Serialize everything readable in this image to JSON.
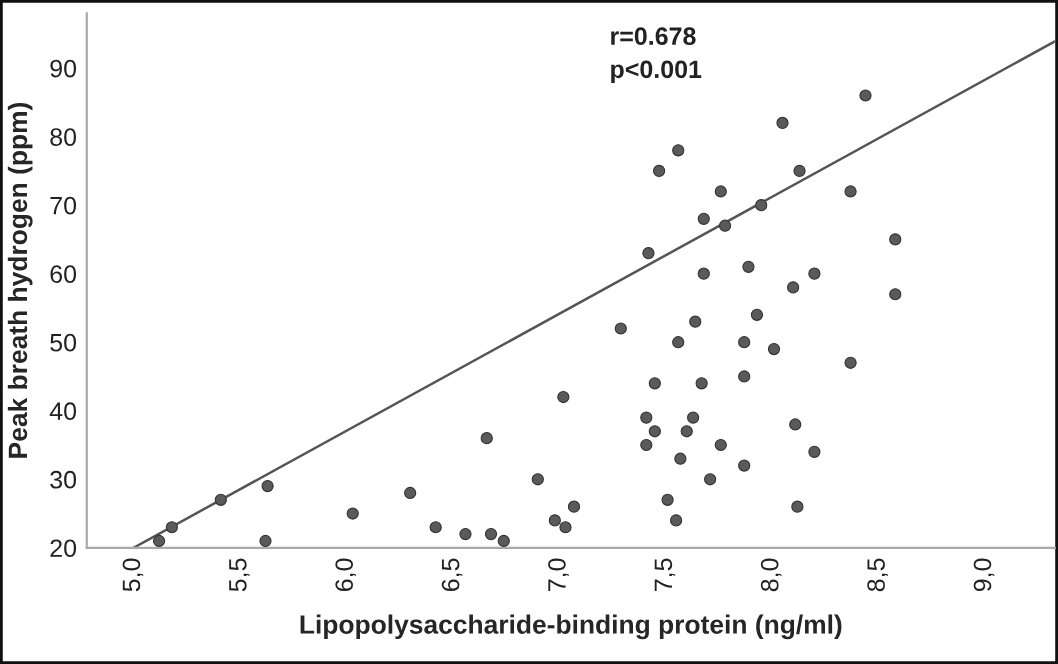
{
  "chart_data": {
    "type": "scatter",
    "xlabel": "Lipopolysaccharide-binding protein (ng/ml)",
    "ylabel": "Peak breath hydrogen (ppm)",
    "annotations": [
      "r=0.678",
      "p<0.001"
    ],
    "xlim": [
      4.78,
      9.33
    ],
    "ylim": [
      20,
      98
    ],
    "xticks": [
      {
        "value": 5.0,
        "label": "5,0"
      },
      {
        "value": 5.5,
        "label": "5,5"
      },
      {
        "value": 6.0,
        "label": "6,0"
      },
      {
        "value": 6.5,
        "label": "6,5"
      },
      {
        "value": 7.0,
        "label": "7,0"
      },
      {
        "value": 7.5,
        "label": "7,5"
      },
      {
        "value": 8.0,
        "label": "8,0"
      },
      {
        "value": 8.5,
        "label": "8,5"
      },
      {
        "value": 9.0,
        "label": "9,0"
      }
    ],
    "yticks": [
      20,
      30,
      40,
      50,
      60,
      70,
      80,
      90
    ],
    "grid": false,
    "marker": "circle",
    "series": [
      {
        "color": "#5a5a5a",
        "x": [
          5.12,
          5.18,
          5.41,
          5.63,
          5.62,
          6.03,
          6.3,
          6.42,
          6.56,
          6.68,
          6.74,
          6.66,
          6.9,
          6.98,
          7.03,
          7.07,
          7.02,
          7.29,
          7.42,
          7.47,
          7.56,
          7.41,
          7.45,
          7.41,
          7.45,
          7.51,
          7.55,
          7.57,
          7.6,
          7.63,
          7.56,
          7.64,
          7.67,
          7.68,
          7.68,
          7.71,
          7.76,
          7.78,
          7.76,
          7.87,
          7.87,
          7.87,
          7.89,
          7.93,
          7.95,
          8.01,
          8.05,
          8.1,
          8.11,
          8.12,
          8.13,
          8.2,
          8.2,
          8.37,
          8.37,
          8.44,
          8.58,
          8.58
        ],
        "values": [
          21,
          23,
          27,
          29,
          21,
          25,
          28,
          23,
          22,
          22,
          21,
          36,
          30,
          24,
          23,
          26,
          42,
          52,
          63,
          75,
          78,
          39,
          37,
          35,
          44,
          27,
          24,
          33,
          37,
          39,
          50,
          53,
          44,
          60,
          68,
          30,
          72,
          67,
          35,
          32,
          45,
          50,
          61,
          54,
          70,
          49,
          82,
          58,
          38,
          26,
          75,
          60,
          34,
          72,
          47,
          86,
          65,
          57
        ]
      },
      {
        "type": "line",
        "color": "#555555",
        "x": [
          5.0,
          9.33
        ],
        "values": [
          20,
          93.9
        ],
        "marker": "none"
      }
    ]
  }
}
